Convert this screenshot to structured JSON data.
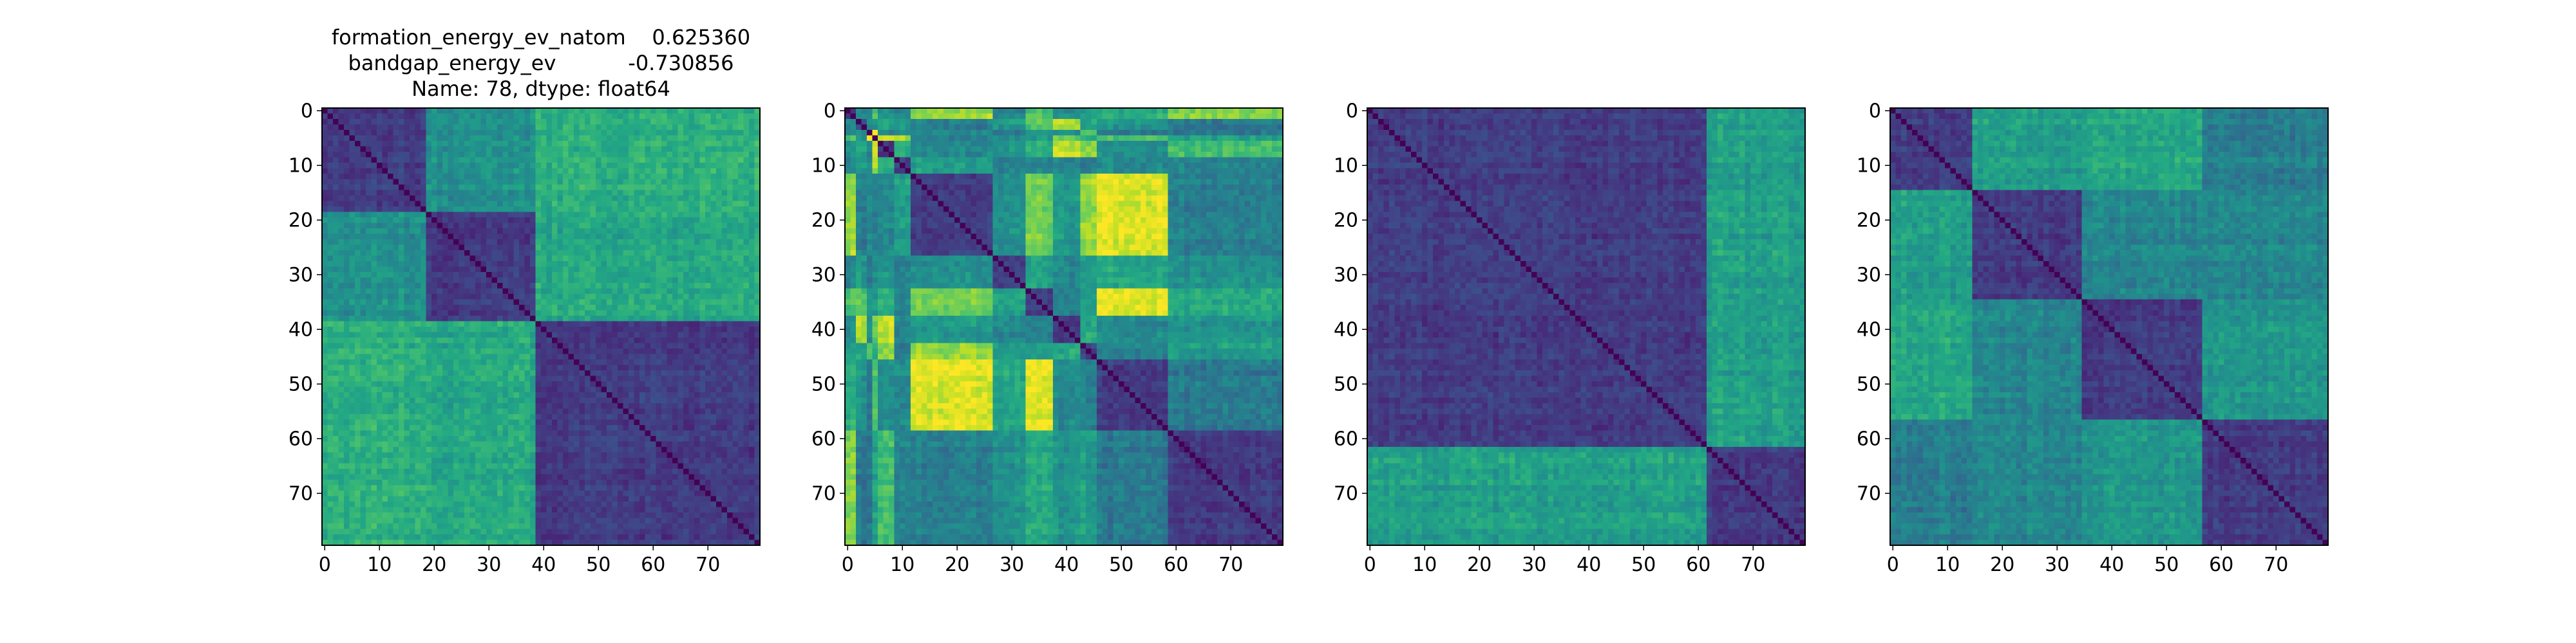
{
  "chart_data": [
    {
      "type": "heatmap",
      "title_lines": [
        "formation_energy_ev_natom    0.625360",
        "bandgap_energy_ev           -0.730856",
        "Name: 78, dtype: float64"
      ],
      "size": 80,
      "xticks": [
        0,
        10,
        20,
        30,
        40,
        50,
        60,
        70
      ],
      "yticks": [
        0,
        10,
        20,
        30,
        40,
        50,
        60,
        70
      ],
      "colormap": "viridis",
      "blocks": [
        0,
        19,
        39,
        80
      ],
      "description_values": "pairwise distance matrix; diagonal 0; high values between block 19-39 and block 39-80"
    },
    {
      "type": "heatmap",
      "size": 80,
      "xticks": [
        0,
        10,
        20,
        30,
        40,
        50,
        60,
        70
      ],
      "yticks": [
        0,
        10,
        20,
        30,
        40,
        50,
        60,
        70
      ],
      "colormap": "viridis",
      "blocks": [
        0,
        2,
        4,
        5,
        6,
        9,
        12,
        27,
        33,
        38,
        43,
        46,
        59,
        80
      ]
    },
    {
      "type": "heatmap",
      "size": 80,
      "xticks": [
        0,
        10,
        20,
        30,
        40,
        50,
        60,
        70
      ],
      "yticks": [
        0,
        10,
        20,
        30,
        40,
        50,
        60,
        70
      ],
      "colormap": "viridis",
      "blocks": [
        0,
        62,
        80
      ]
    },
    {
      "type": "heatmap",
      "size": 80,
      "xticks": [
        0,
        10,
        20,
        30,
        40,
        50,
        60,
        70
      ],
      "yticks": [
        0,
        10,
        20,
        30,
        40,
        50,
        60,
        70
      ],
      "colormap": "viridis",
      "blocks": [
        0,
        15,
        35,
        57,
        80
      ]
    }
  ]
}
